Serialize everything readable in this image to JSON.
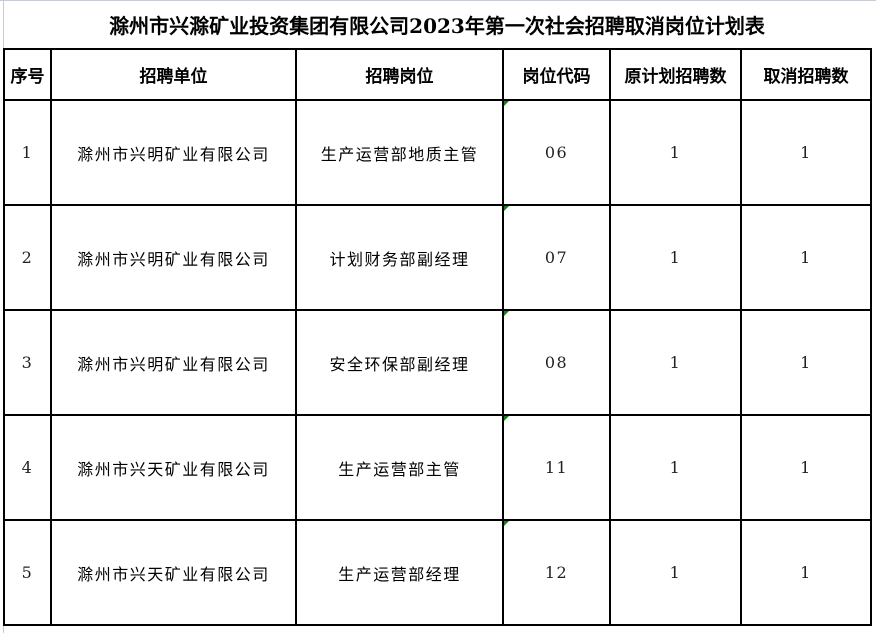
{
  "title": "滁州市兴滁矿业投资集团有限公司2023年第一次社会招聘取消岗位计划表",
  "headers": [
    "序号",
    "招聘单位",
    "招聘岗位",
    "岗位代码",
    "原计划招聘数",
    "取消招聘数"
  ],
  "rows": [
    [
      "1",
      "滁州市兴明矿业有限公司",
      "生产运营部地质主管",
      "06",
      "1",
      "1"
    ],
    [
      "2",
      "滁州市兴明矿业有限公司",
      "计划财务部副经理",
      "07",
      "1",
      "1"
    ],
    [
      "3",
      "滁州市兴明矿业有限公司",
      "安全环保部副经理",
      "08",
      "1",
      "1"
    ],
    [
      "4",
      "滁州市兴天矿业有限公司",
      "生产运营部主管",
      "11",
      "1",
      "1"
    ],
    [
      "5",
      "滁州市兴天矿业有限公司",
      "生产运营部经理",
      "12",
      "1",
      "1"
    ]
  ],
  "colors": {
    "text_number_indicator": "#1a7f1a",
    "border": "#000000"
  }
}
